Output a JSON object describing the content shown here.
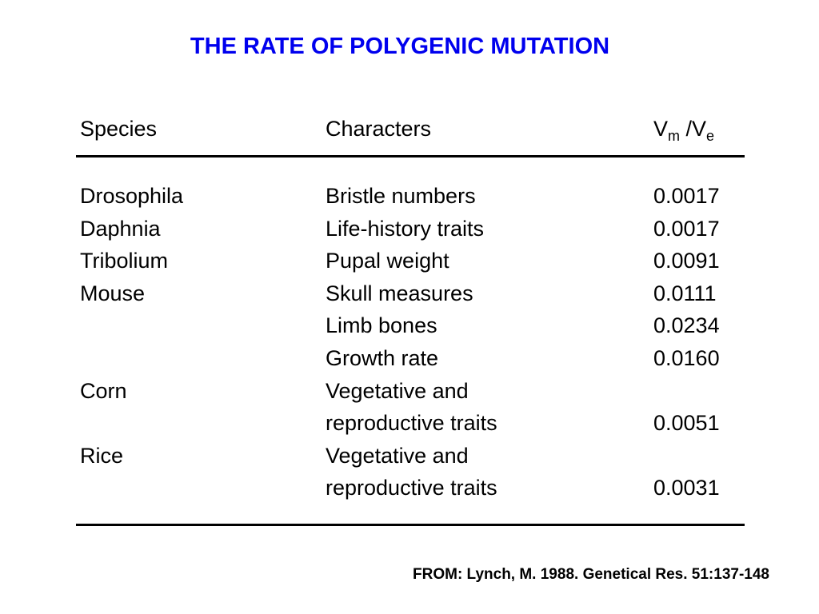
{
  "title": "THE RATE OF POLYGENIC MUTATION",
  "table": {
    "headers": {
      "species": "Species",
      "characters": "Characters",
      "ratio_v1": "V",
      "ratio_sub1": "m",
      "ratio_mid": " /V",
      "ratio_sub2": "e"
    },
    "rows": [
      {
        "species": "Drosophila",
        "character": "Bristle numbers",
        "value": "0.0017"
      },
      {
        "species": "Daphnia",
        "character": "Life-history traits",
        "value": "0.0017"
      },
      {
        "species": "Tribolium",
        "character": "Pupal weight",
        "value": "0.0091"
      },
      {
        "species": "Mouse",
        "character": "Skull measures",
        "value": "0.0111"
      },
      {
        "species": "",
        "character": "Limb bones",
        "value": "0.0234"
      },
      {
        "species": "",
        "character": "Growth rate",
        "value": "0.0160"
      },
      {
        "species": "Corn",
        "character": "Vegetative and",
        "value": ""
      },
      {
        "species": "",
        "character": "reproductive traits",
        "value": "0.0051"
      },
      {
        "species": "Rice",
        "character": "Vegetative and",
        "value": ""
      },
      {
        "species": "",
        "character": "reproductive traits",
        "value": "0.0031"
      }
    ]
  },
  "source": "FROM: Lynch, M. 1988. Genetical Res. 51:137-148",
  "colors": {
    "title": "#0000ee",
    "text": "#000000",
    "background": "#ffffff"
  }
}
